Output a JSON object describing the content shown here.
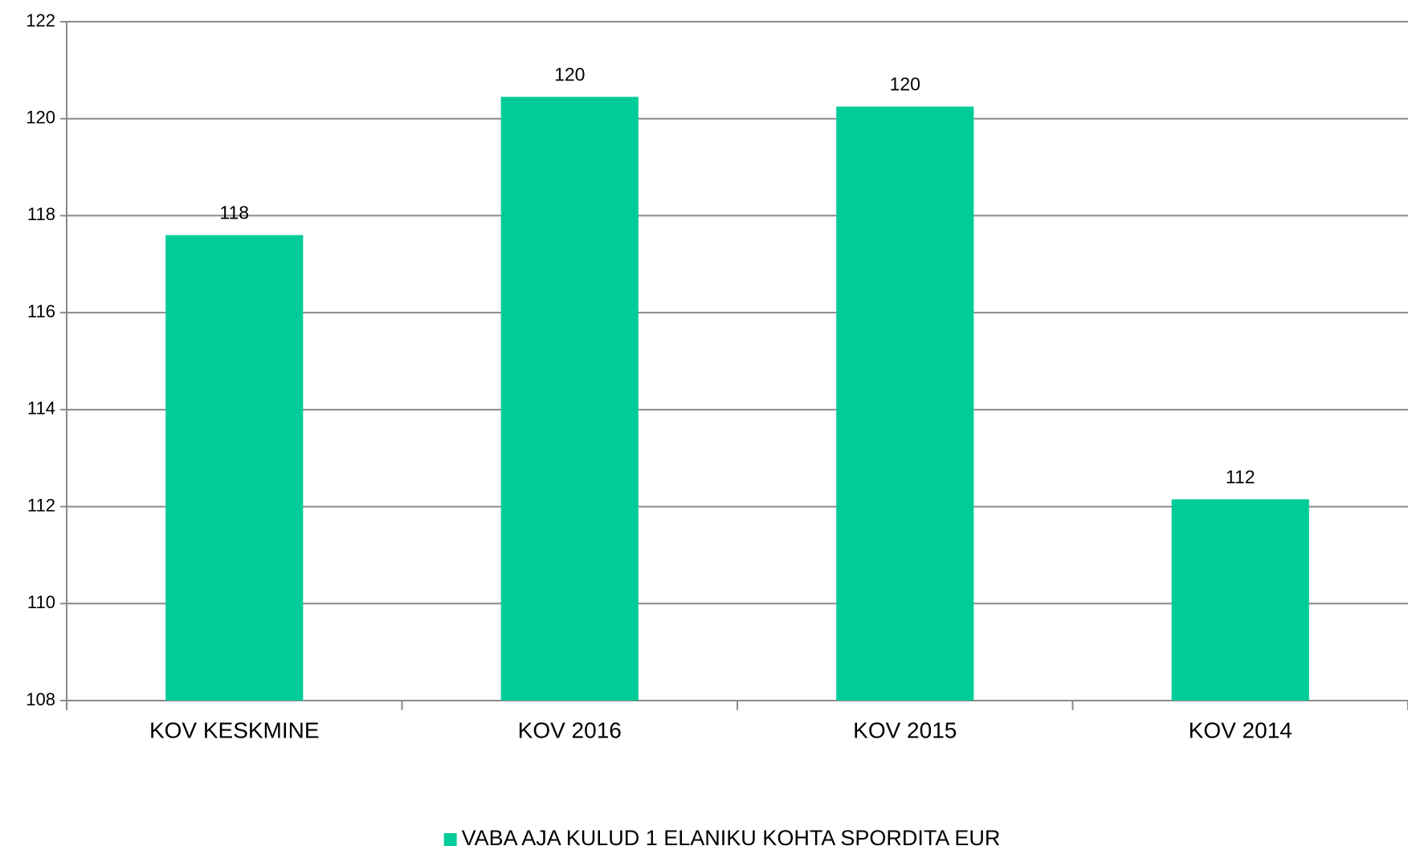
{
  "chart_data": {
    "type": "bar",
    "categories": [
      "KOV KESKMINE",
      "KOV  2016",
      "KOV  2015",
      "KOV  2014"
    ],
    "series": [
      {
        "name": "VABA AJA KULUD 1 ELANIKU KOHTA SPORDITA EUR",
        "color": "#00cc99",
        "values": [
          117.6,
          120.45,
          120.25,
          112.15
        ],
        "value_labels": [
          "118",
          "120",
          "120",
          "112"
        ]
      }
    ],
    "ylim": [
      108,
      122
    ],
    "yticks": [
      108,
      110,
      112,
      114,
      116,
      118,
      120,
      122
    ],
    "grid": true,
    "legend": "bottom"
  }
}
